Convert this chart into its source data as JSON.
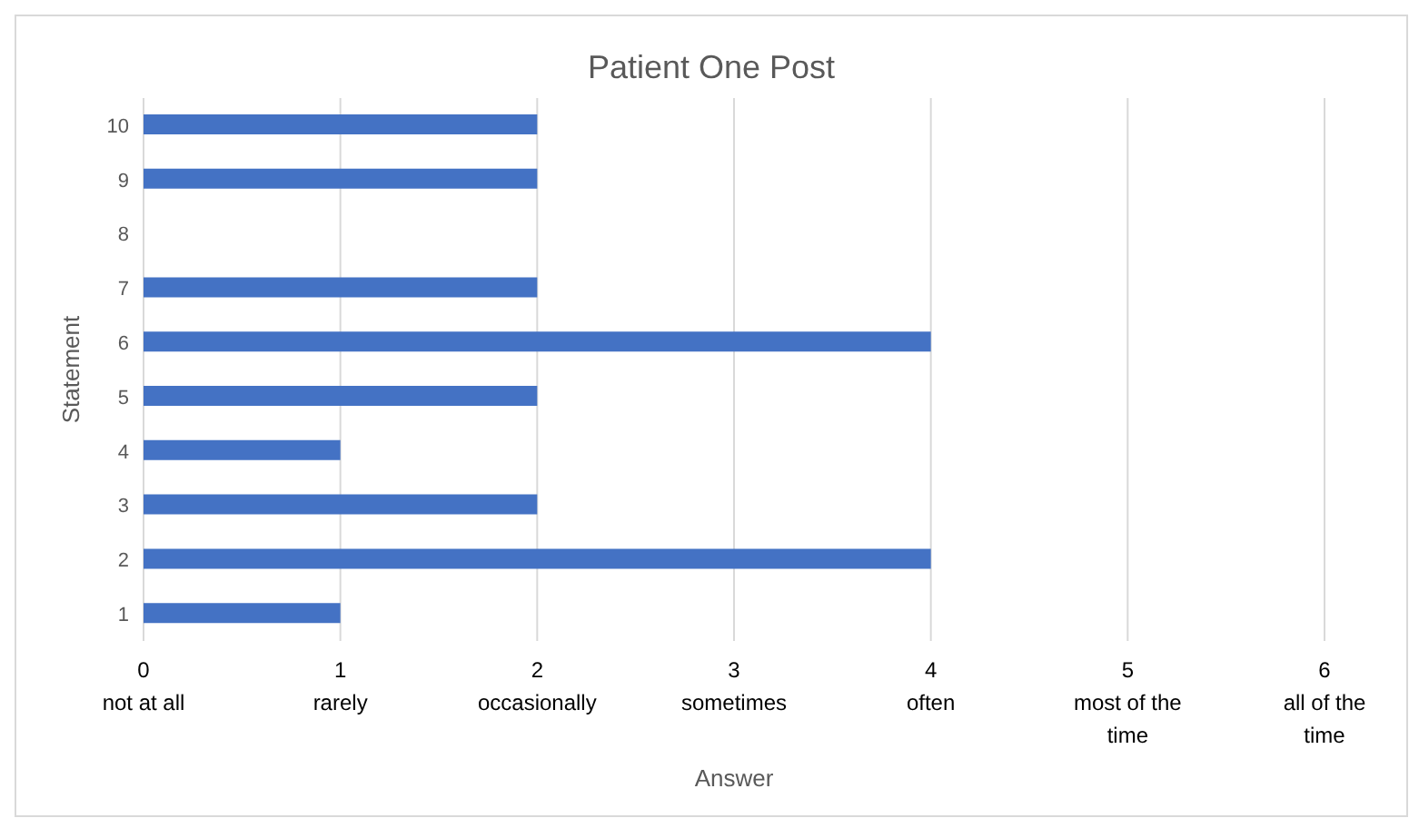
{
  "chart_data": {
    "type": "bar",
    "orientation": "horizontal",
    "title": "Patient One Post",
    "xlabel": "Answer",
    "ylabel": "Statement",
    "categories": [
      "10",
      "9",
      "8",
      "7",
      "6",
      "5",
      "4",
      "3",
      "2",
      "1"
    ],
    "values": [
      2,
      2,
      0,
      2,
      4,
      2,
      1,
      2,
      4,
      1
    ],
    "color": "#4472c4",
    "xlim": [
      0,
      6
    ],
    "xticks": [
      {
        "value": 0,
        "label": "0\nnot at all"
      },
      {
        "value": 1,
        "label": "1\nrarely"
      },
      {
        "value": 2,
        "label": "2\noccasionally"
      },
      {
        "value": 3,
        "label": "3\nsometimes"
      },
      {
        "value": 4,
        "label": "4\noften"
      },
      {
        "value": 5,
        "label": "5\nmost of the\ntime"
      },
      {
        "value": 6,
        "label": "6\nall of the\ntime"
      }
    ],
    "grid": "x"
  }
}
